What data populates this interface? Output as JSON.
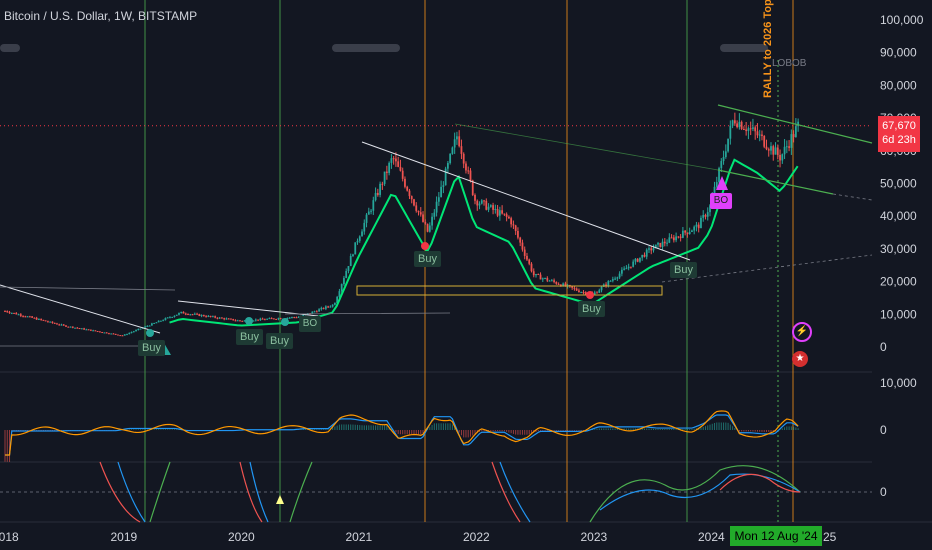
{
  "header": {
    "title": "Bitcoin / U.S. Dollar, 1W, BITSTAMP"
  },
  "price_tag": {
    "price": "67,670",
    "countdown": "6d 23h"
  },
  "date_tag": "Mon 12 Aug '24",
  "annotations": {
    "rally": "RALLY to 2026 Top",
    "lobob": "LOBOB",
    "buy": "Buy",
    "bo": "BO"
  },
  "colors": {
    "background": "#131722",
    "up": "#26a69a",
    "down": "#ef5350",
    "accent_green": "#4caf50",
    "accent_orange": "#f7931a",
    "price_line": "#f23645"
  },
  "chart_data": [
    {
      "type": "line",
      "name": "price-pane",
      "x": [
        2018,
        2018.5,
        2019,
        2019.5,
        2020,
        2020.5,
        2020.8,
        2021,
        2021.3,
        2021.6,
        2021.85,
        2022,
        2022.3,
        2022.5,
        2022.9,
        2023,
        2023.5,
        2023.9,
        2024,
        2024.2,
        2024.4,
        2024.6,
        2024.75
      ],
      "series": [
        {
          "values": [
            11000,
            6500,
            3500,
            10500,
            8000,
            9200,
            13000,
            33000,
            58000,
            35000,
            65000,
            45000,
            39000,
            22000,
            17000,
            16000,
            30000,
            37000,
            43000,
            70000,
            65000,
            58000,
            67670
          ]
        }
      ],
      "x_ticks": [
        "2018",
        "2019",
        "2020",
        "2021",
        "2022",
        "2023",
        "2024",
        "25"
      ],
      "y_ticks": [
        "100,000",
        "90,000",
        "80,000",
        "70,000",
        "60,000",
        "50,000",
        "40,000",
        "30,000",
        "20,000",
        "10,000",
        "0"
      ],
      "ylim": [
        0,
        100000
      ],
      "last_price": 67670
    },
    {
      "type": "line",
      "name": "macd-pane",
      "y_ticks": [
        "10,000",
        "0"
      ]
    },
    {
      "type": "line",
      "name": "oscillator-pane",
      "y_ticks": [
        "0"
      ]
    }
  ]
}
